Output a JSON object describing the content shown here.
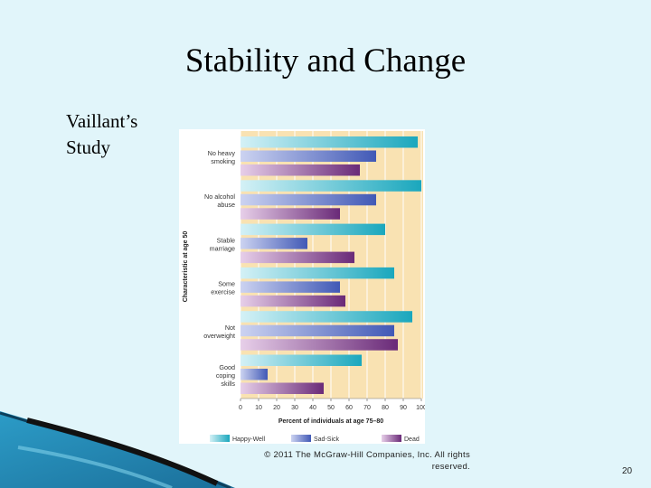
{
  "slide": {
    "title": "Stability and Change",
    "subtitle_lines": [
      "Vaillant’s",
      "Study"
    ],
    "footer_lines": [
      "© 2011 The McGraw-Hill Companies, Inc. All rights",
      "reserved."
    ],
    "page_number": "20"
  },
  "chart_data": {
    "type": "bar",
    "orientation": "horizontal",
    "categories": [
      [
        "No heavy",
        "smoking"
      ],
      [
        "No alcohol",
        "abuse"
      ],
      [
        "Stable",
        "marriage"
      ],
      [
        "Some",
        "exercise"
      ],
      [
        "Not",
        "overweight"
      ],
      [
        "Good",
        "coping",
        "skills"
      ]
    ],
    "series": [
      {
        "name": "Happy-Well",
        "values": [
          98,
          100,
          80,
          85,
          95,
          67
        ]
      },
      {
        "name": "Sad-Sick",
        "values": [
          75,
          75,
          37,
          55,
          85,
          15
        ]
      },
      {
        "name": "Dead",
        "values": [
          66,
          55,
          63,
          58,
          87,
          46
        ]
      }
    ],
    "xlabel": "Percent of individuals at age 75–80",
    "ylabel": "Characteristic at age 50",
    "xlim": [
      0,
      100
    ],
    "xticks": [
      "0",
      "10",
      "20",
      "30",
      "40",
      "50",
      "60",
      "70",
      "80",
      "90",
      "100"
    ],
    "grid": true,
    "legend_position": "bottom",
    "colors": {
      "plot_background": "#f9e2b2",
      "Happy-Well": [
        "#d4f1f6",
        "#1aa7bd"
      ],
      "Sad-Sick": [
        "#ccd3f1",
        "#4159b6"
      ],
      "Dead": [
        "#e7cfe9",
        "#6a2a78"
      ]
    }
  }
}
